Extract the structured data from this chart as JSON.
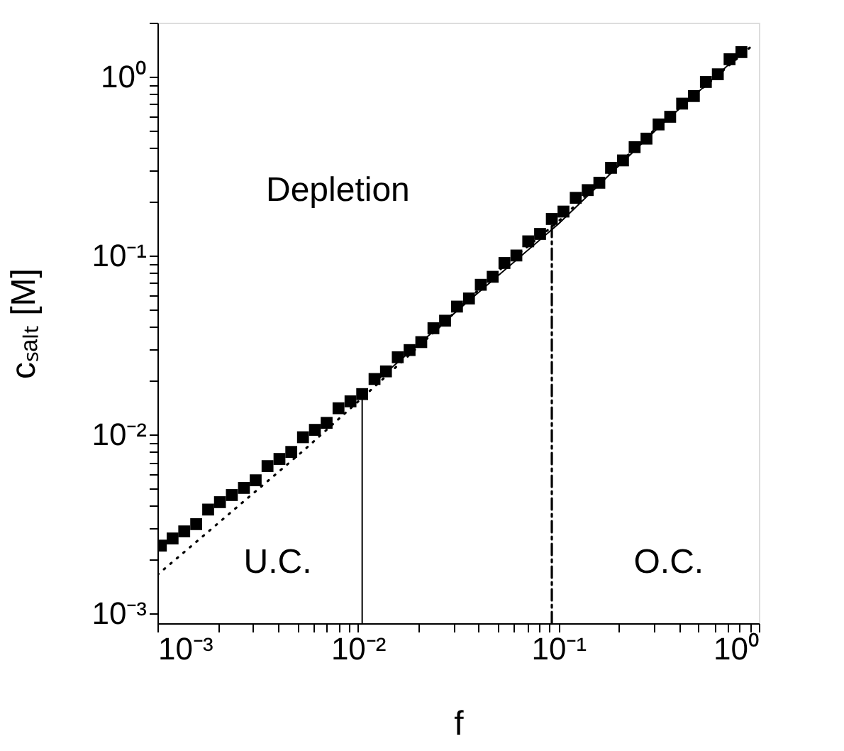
{
  "chart_data": {
    "type": "scatter",
    "xlabel": "f",
    "ylabel": "cₛₐₗₜ [M]",
    "annotations": [
      "Depletion",
      "U.C.",
      "O.C."
    ],
    "log": "xy",
    "grid": false,
    "xlim": [
      0.001,
      1
    ],
    "ylim": [
      0.00088,
      2.0
    ],
    "xticks": [
      {
        "value": 0.001,
        "label": "10⁻³"
      },
      {
        "value": 0.002,
        "label": null
      },
      {
        "value": 0.003,
        "label": null
      },
      {
        "value": 0.004,
        "label": null
      },
      {
        "value": 0.005,
        "label": null
      },
      {
        "value": 0.006,
        "label": null
      },
      {
        "value": 0.007,
        "label": null
      },
      {
        "value": 0.008,
        "label": null
      },
      {
        "value": 0.009,
        "label": null
      },
      {
        "value": 0.01,
        "label": "10⁻²"
      },
      {
        "value": 0.02,
        "label": null
      },
      {
        "value": 0.03,
        "label": null
      },
      {
        "value": 0.04,
        "label": null
      },
      {
        "value": 0.05,
        "label": null
      },
      {
        "value": 0.06,
        "label": null
      },
      {
        "value": 0.07,
        "label": null
      },
      {
        "value": 0.08,
        "label": null
      },
      {
        "value": 0.09,
        "label": null
      },
      {
        "value": 0.1,
        "label": "10⁻¹"
      },
      {
        "value": 0.2,
        "label": null
      },
      {
        "value": 0.3,
        "label": null
      },
      {
        "value": 0.4,
        "label": null
      },
      {
        "value": 0.5,
        "label": null
      },
      {
        "value": 0.6,
        "label": null
      },
      {
        "value": 0.7,
        "label": null
      },
      {
        "value": 0.8,
        "label": null
      },
      {
        "value": 0.9,
        "label": null
      },
      {
        "value": 1,
        "label": "10⁰"
      }
    ],
    "yticks": [
      {
        "value": 0.001,
        "label": "10⁻³"
      },
      {
        "value": 0.002,
        "label": null
      },
      {
        "value": 0.003,
        "label": null
      },
      {
        "value": 0.004,
        "label": null
      },
      {
        "value": 0.005,
        "label": null
      },
      {
        "value": 0.006,
        "label": null
      },
      {
        "value": 0.007,
        "label": null
      },
      {
        "value": 0.008,
        "label": null
      },
      {
        "value": 0.009,
        "label": null
      },
      {
        "value": 0.01,
        "label": "10⁻²"
      },
      {
        "value": 0.02,
        "label": null
      },
      {
        "value": 0.03,
        "label": null
      },
      {
        "value": 0.04,
        "label": null
      },
      {
        "value": 0.05,
        "label": null
      },
      {
        "value": 0.06,
        "label": null
      },
      {
        "value": 0.07,
        "label": null
      },
      {
        "value": 0.08,
        "label": null
      },
      {
        "value": 0.09,
        "label": null
      },
      {
        "value": 0.1,
        "label": "10⁻¹"
      },
      {
        "value": 0.2,
        "label": null
      },
      {
        "value": 0.3,
        "label": null
      },
      {
        "value": 0.4,
        "label": null
      },
      {
        "value": 0.5,
        "label": null
      },
      {
        "value": 0.6,
        "label": null
      },
      {
        "value": 0.7,
        "label": null
      },
      {
        "value": 0.8,
        "label": null
      },
      {
        "value": 0.9,
        "label": null
      },
      {
        "value": 1,
        "label": "10⁰"
      },
      {
        "value": 2,
        "label": null
      }
    ],
    "series": [
      {
        "type": "line",
        "line_style": "dotted",
        "marker": "none",
        "color": "#000000",
        "x": [
          0.001,
          0.00532,
          0.0105,
          0.0207,
          0.0538,
          0.1,
          0.316,
          0.9
        ],
        "values": [
          0.00164,
          0.00807,
          0.016,
          0.032,
          0.088,
          0.155,
          0.53,
          1.45
        ]
      },
      {
        "type": "line",
        "line_style": "solid",
        "marker": "none",
        "color": "#000000",
        "x": [
          0.0121,
          0.0358,
          0.1,
          0.316,
          0.818
        ],
        "values": [
          0.0195,
          0.056,
          0.15,
          0.52,
          1.35
        ]
      },
      {
        "type": "line",
        "line_style": "solid",
        "marker": "none",
        "color": "#000000",
        "x": [
          0.0105,
          0.0105
        ],
        "values": [
          0.00088,
          0.0168
        ]
      },
      {
        "type": "line",
        "line_style": "dashed",
        "marker": "none",
        "color": "#000000",
        "x": [
          0.0927,
          0.0927
        ],
        "values": [
          0.00088,
          0.155
        ]
      },
      {
        "marker": "square",
        "color": "#000000",
        "x": [
          0.00104,
          0.00119,
          0.00136,
          0.00156,
          0.00179,
          0.00205,
          0.00235,
          0.0027,
          0.00309,
          0.00354,
          0.00406,
          0.00465,
          0.00532,
          0.0061,
          0.00698,
          0.008,
          0.00918,
          0.0105,
          0.0121,
          0.0138,
          0.0158,
          0.0181,
          0.0207,
          0.0238,
          0.0272,
          0.0312,
          0.0358,
          0.041,
          0.047,
          0.0538,
          0.0617,
          0.0707,
          0.081,
          0.0927,
          0.106,
          0.122,
          0.14,
          0.16,
          0.183,
          0.21,
          0.24,
          0.275,
          0.316,
          0.361,
          0.414,
          0.474,
          0.544,
          0.624,
          0.714,
          0.818
        ],
        "values": [
          0.00239,
          0.00262,
          0.00287,
          0.00315,
          0.0038,
          0.00418,
          0.00458,
          0.00502,
          0.00554,
          0.00665,
          0.00729,
          0.00798,
          0.00964,
          0.0106,
          0.0116,
          0.014,
          0.0153,
          0.0168,
          0.0204,
          0.0225,
          0.027,
          0.0296,
          0.0328,
          0.0392,
          0.0432,
          0.0518,
          0.0575,
          0.0686,
          0.076,
          0.0908,
          0.1,
          0.12,
          0.132,
          0.16,
          0.176,
          0.21,
          0.232,
          0.255,
          0.309,
          0.34,
          0.403,
          0.45,
          0.54,
          0.596,
          0.706,
          0.778,
          0.933,
          1.03,
          1.25,
          1.37
        ]
      }
    ]
  }
}
